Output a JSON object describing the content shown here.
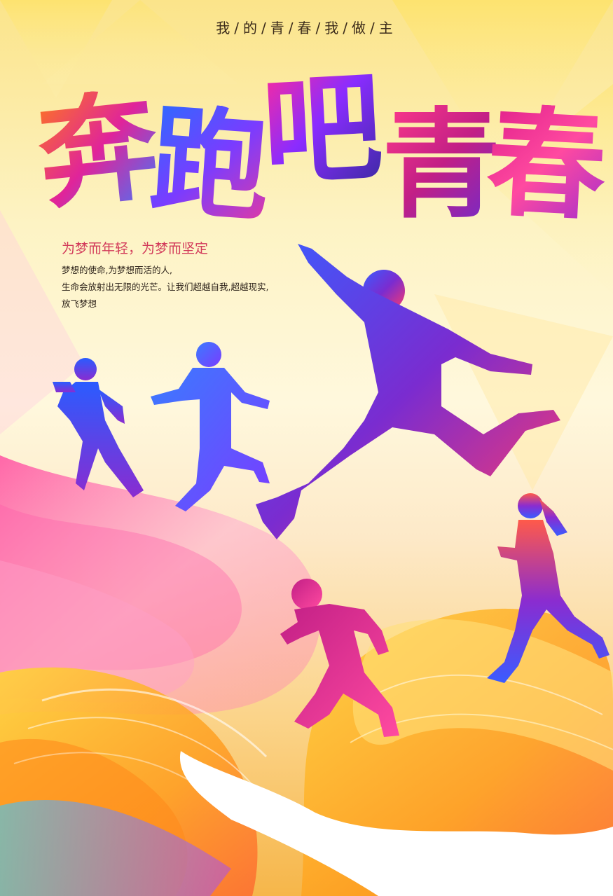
{
  "poster": {
    "tagline": "我/的/青/春/我/做/主",
    "title_chars": [
      "奔",
      "跑",
      "吧",
      "青",
      "春"
    ],
    "subtitle": "为梦而年轻，为梦而坚定",
    "description": [
      "梦想的使命,为梦想而活的人,",
      "生命会放射出无限的光芒。让我们超越自我,超越现实,",
      "放飞梦想"
    ]
  },
  "colors": {
    "accent_pink": "#e01f8a",
    "accent_blue": "#3a6cff",
    "accent_purple": "#7a3cff",
    "accent_orange": "#ff8a1a",
    "subtitle_red": "#d23a5a"
  }
}
